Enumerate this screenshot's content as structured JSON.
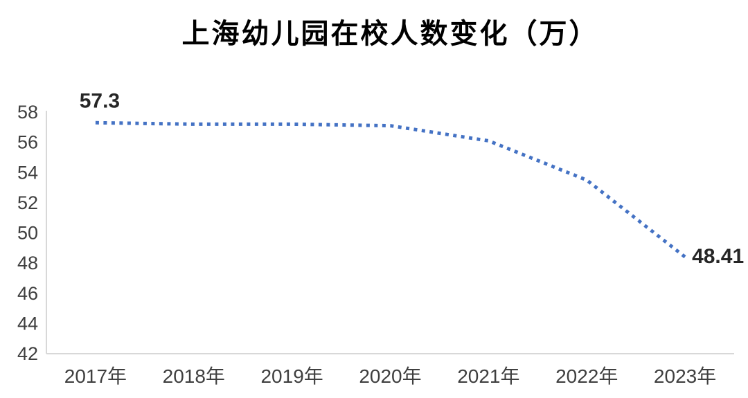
{
  "title": "上海幼儿园在校人数变化（万）",
  "colors": {
    "background": "#FFFFFF",
    "line": "#4472C4",
    "axis_line": "#D8D8D8",
    "tick_text": "#3F3F3F",
    "point_label_text": "#262626",
    "title_text": "#000000"
  },
  "chart_data": {
    "type": "line",
    "line_style": "dotted",
    "title": "上海幼儿园在校人数变化（万）",
    "categories": [
      "2017年",
      "2018年",
      "2019年",
      "2020年",
      "2021年",
      "2022年",
      "2023年"
    ],
    "values": [
      57.3,
      57.2,
      57.2,
      57.1,
      56.1,
      53.5,
      48.41
    ],
    "xlabel": "",
    "ylabel": "",
    "ylim": [
      42,
      58
    ],
    "ytick_interval": 2,
    "ytick_labels": [
      "58",
      "56",
      "54",
      "52",
      "50",
      "48",
      "46",
      "44",
      "42"
    ],
    "grid": false,
    "legend_position": "none",
    "point_labels": {
      "first_point": "57.3",
      "last_point": "48.41"
    }
  }
}
